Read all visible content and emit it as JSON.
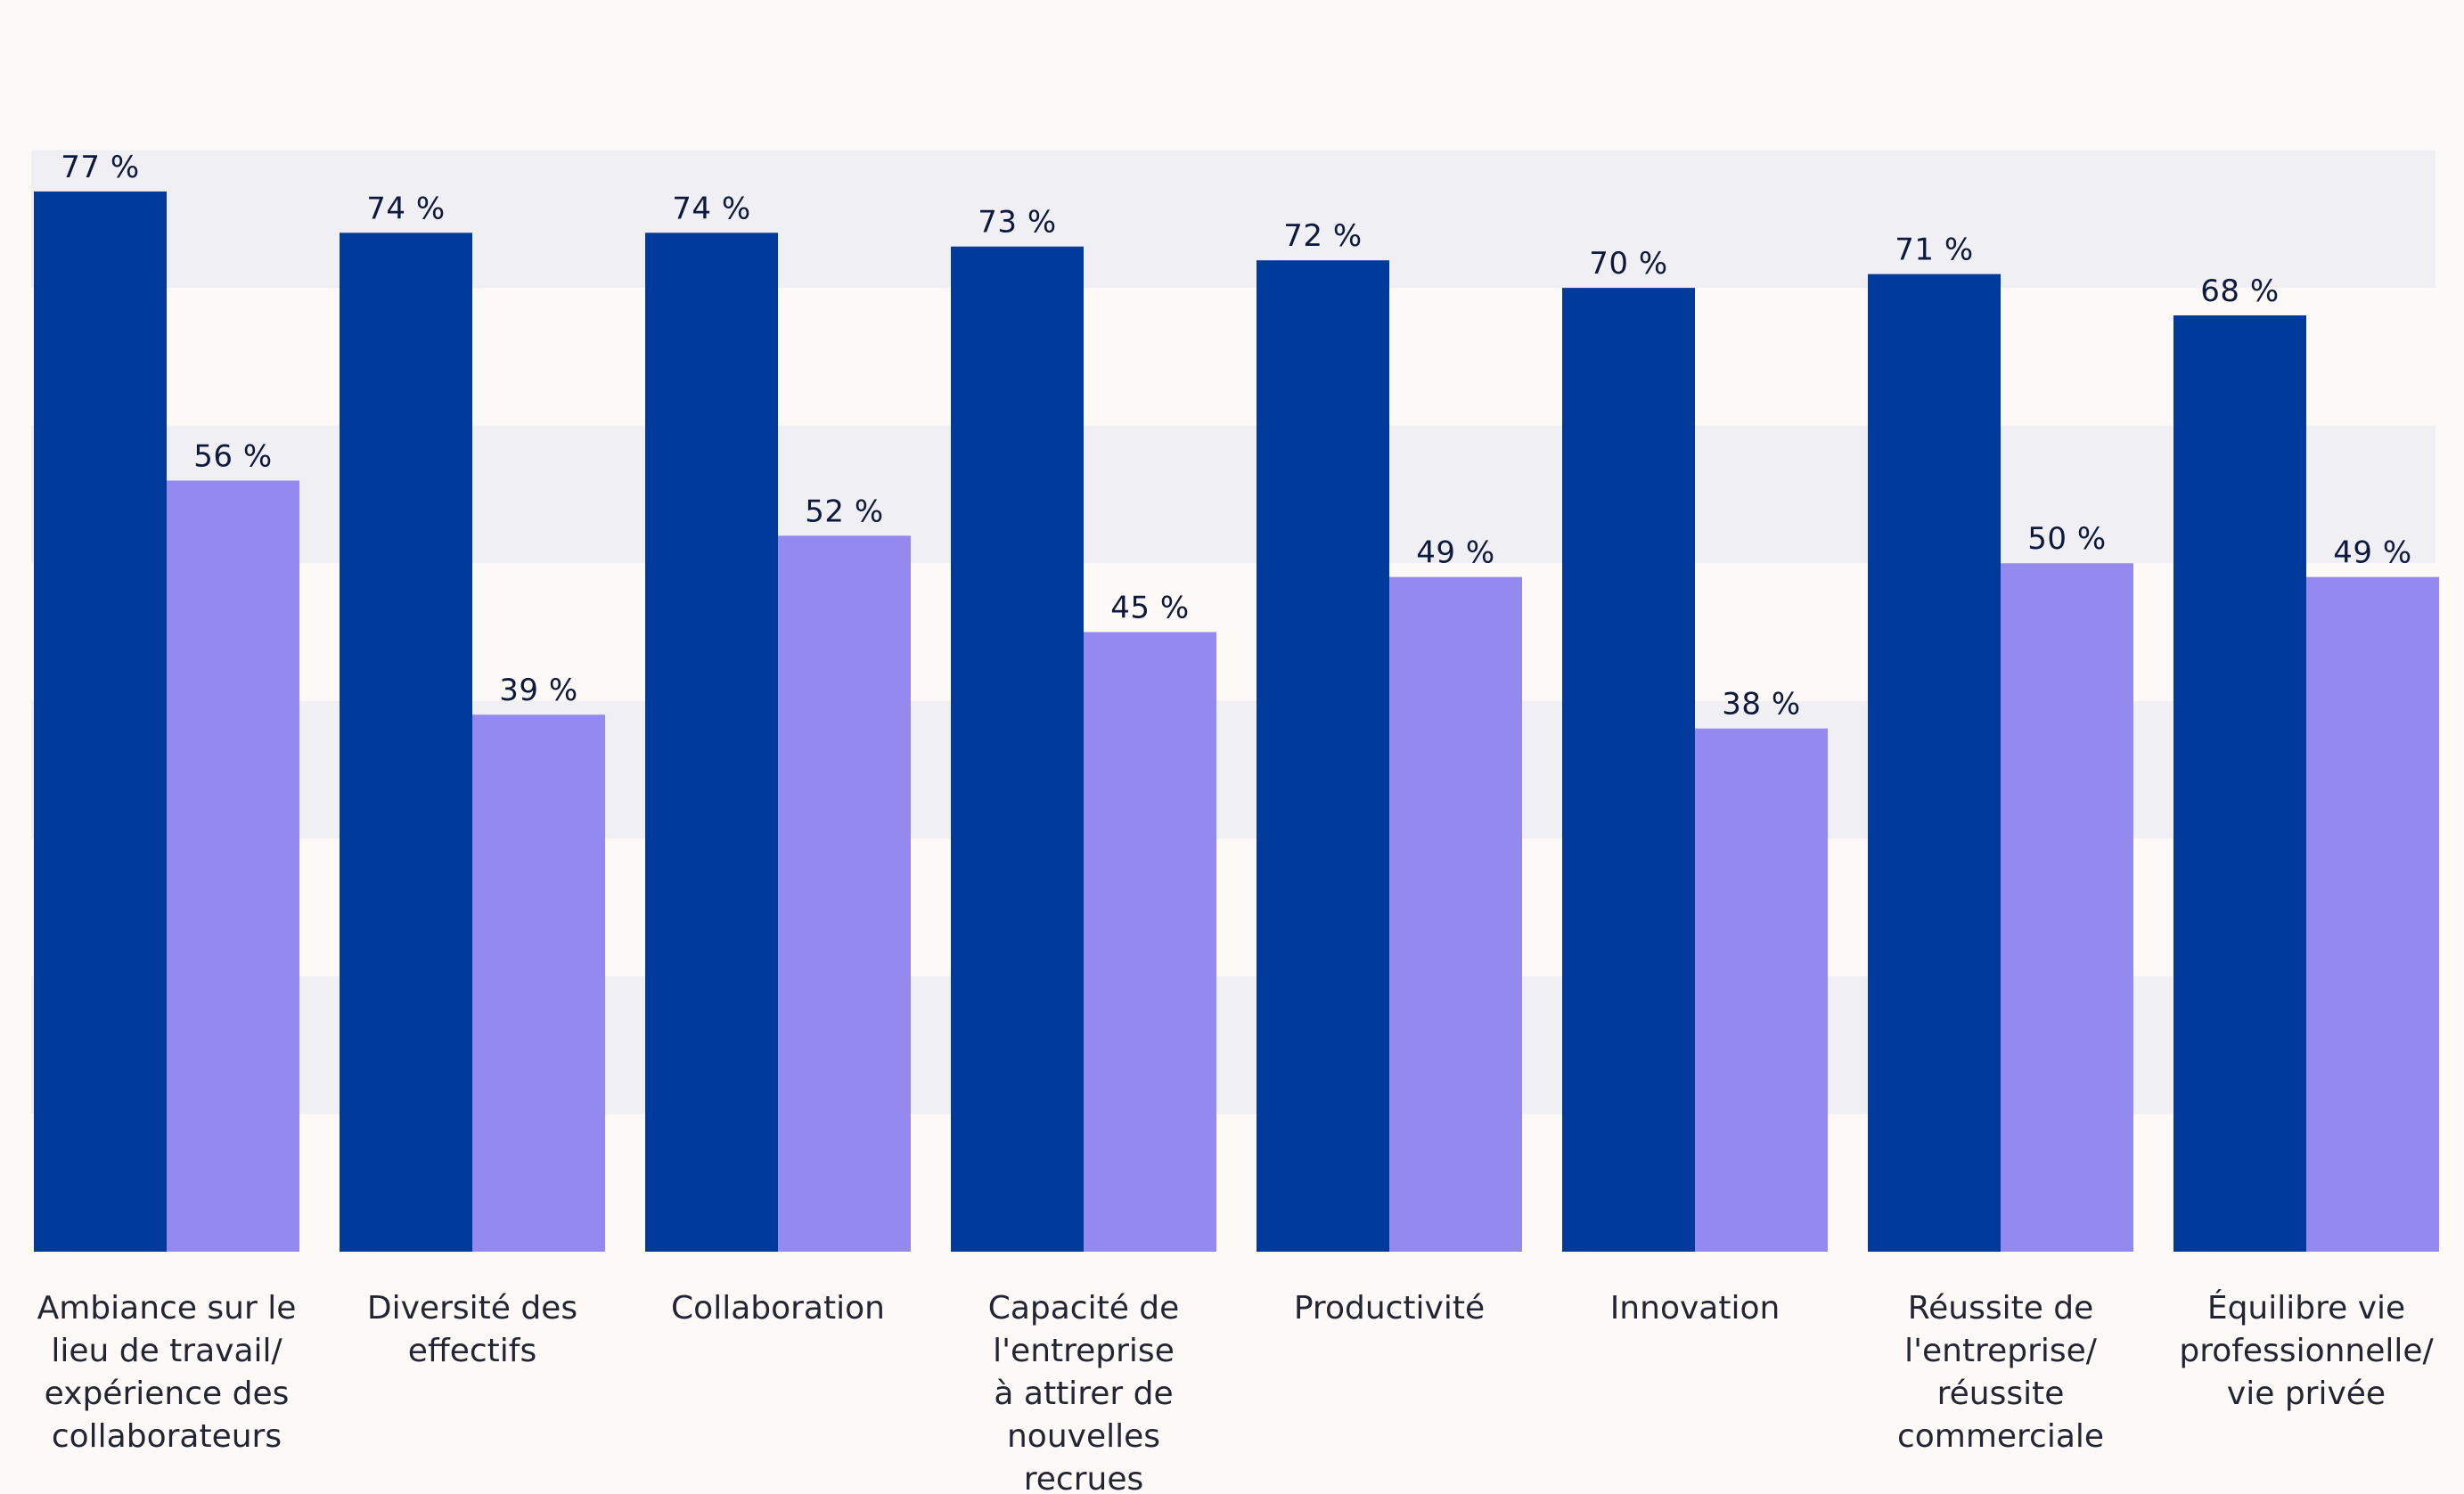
{
  "chart_data": {
    "type": "bar",
    "title": "",
    "xlabel": "",
    "ylabel": "",
    "ylim": [
      0,
      90
    ],
    "grid": "alternating horizontal bands",
    "colors": {
      "background": "#fdf9f7",
      "band": "#f0eff4",
      "series_1": "#003a9b",
      "series_2": "#9489ef",
      "label": "#0d1a3d"
    },
    "categories": [
      [
        "Ambiance sur le",
        "lieu de travail/",
        "expérience des",
        "collaborateurs"
      ],
      [
        "Diversité des",
        "effectifs"
      ],
      [
        "Collaboration"
      ],
      [
        "Capacité de",
        "l'entreprise",
        "à attirer de",
        "nouvelles",
        "recrues"
      ],
      [
        "Productivité"
      ],
      [
        "Innovation"
      ],
      [
        "Réussite de",
        "l'entreprise/",
        "réussite",
        "commerciale"
      ],
      [
        "Équilibre vie",
        "professionnelle/",
        "vie privée"
      ]
    ],
    "series": [
      {
        "values": [
          77,
          74,
          74,
          73,
          72,
          70,
          71,
          68
        ],
        "labels": [
          "77 %",
          "74 %",
          "74 %",
          "73 %",
          "72 %",
          "70 %",
          "71 %",
          "68 %"
        ]
      },
      {
        "values": [
          56,
          39,
          52,
          45,
          49,
          38,
          50,
          49
        ],
        "labels": [
          "56 %",
          "39 %",
          "52 %",
          "45 %",
          "49 %",
          "38 %",
          "50 %",
          "49 %"
        ]
      }
    ]
  }
}
